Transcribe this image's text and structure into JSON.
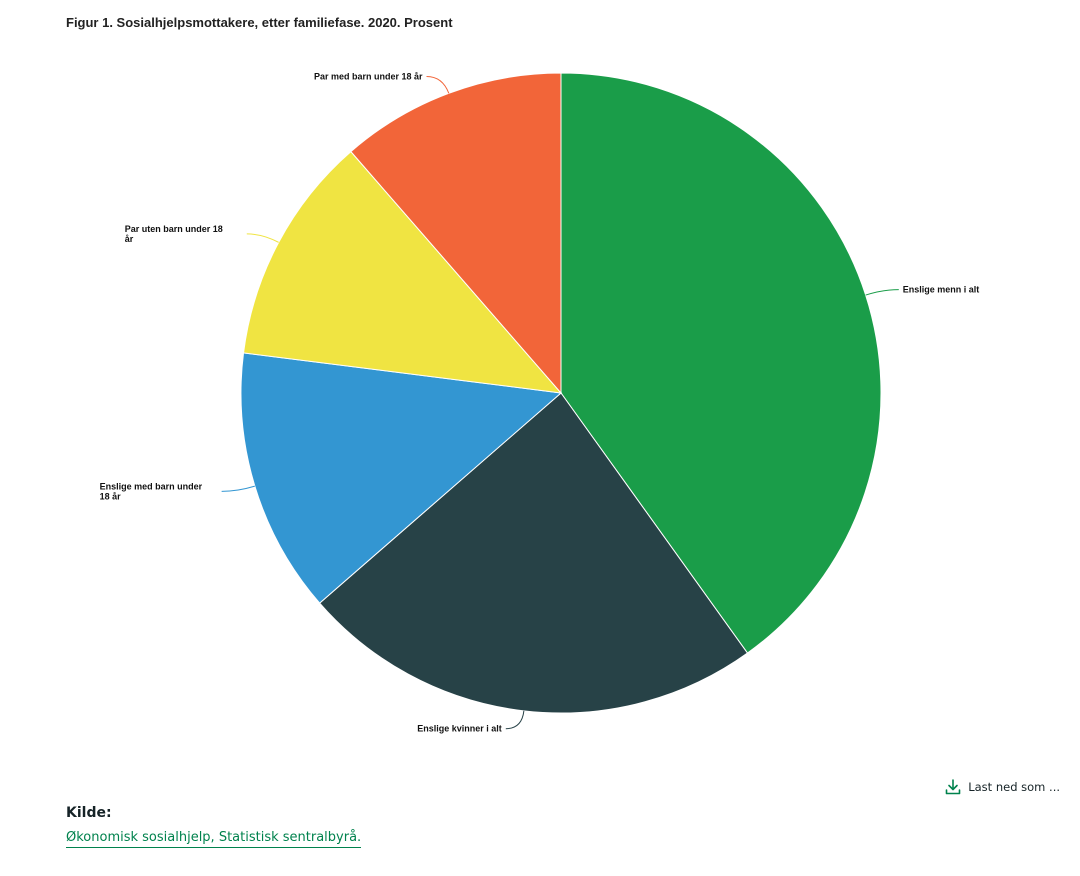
{
  "title": "Figur 1. Sosialhjelpsmottakere, etter familiefase. 2020. Prosent",
  "chart_data": {
    "type": "pie",
    "title": "Figur 1. Sosialhjelpsmottakere, etter familiefase. 2020. Prosent",
    "start_angle_deg": 0,
    "slices": [
      {
        "label": "Enslige menn i alt",
        "value": 40.1,
        "color": "#1a9d49"
      },
      {
        "label": "Enslige kvinner i alt",
        "value": 23.5,
        "color": "#274247"
      },
      {
        "label": "Enslige med barn under 18 år",
        "value": 13.4,
        "color": "#3396d2"
      },
      {
        "label": "Par uten barn under 18 år",
        "value": 11.6,
        "color": "#f0e442"
      },
      {
        "label": "Par med barn under 18 år",
        "value": 11.4,
        "color": "#f26539"
      }
    ]
  },
  "download": {
    "label": "Last ned som ...",
    "icon": "download-icon"
  },
  "source": {
    "heading": "Kilde:",
    "link_text": "Økonomisk sosialhjelp, Statistisk sentralbyrå."
  },
  "colors": {
    "accent": "#00824d",
    "text": "#162327"
  }
}
